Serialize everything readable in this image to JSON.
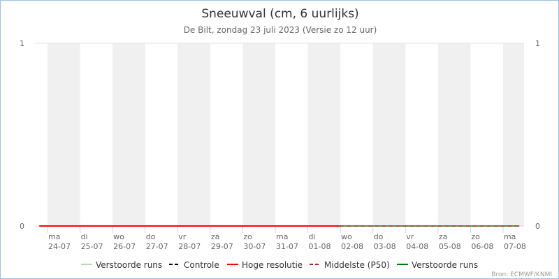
{
  "chart_data": {
    "type": "line",
    "title": "Sneeuwval (cm, 6 uurlijks)",
    "subtitle": "De Bilt, zondag 23 juli 2023 (Versie zo 12 uur)",
    "credits": "Bron: ECMWF/KNMI",
    "ylim": [
      0,
      1
    ],
    "yticks": [
      "0",
      "1"
    ],
    "grid": "horizontal",
    "legend_position": "bottom",
    "xticks": [
      {
        "day": "ma",
        "date": "24-07"
      },
      {
        "day": "di",
        "date": "25-07"
      },
      {
        "day": "wo",
        "date": "26-07"
      },
      {
        "day": "do",
        "date": "27-07"
      },
      {
        "day": "vr",
        "date": "28-07"
      },
      {
        "day": "za",
        "date": "29-07"
      },
      {
        "day": "zo",
        "date": "30-07"
      },
      {
        "day": "ma",
        "date": "31-07"
      },
      {
        "day": "di",
        "date": "01-08"
      },
      {
        "day": "wo",
        "date": "02-08"
      },
      {
        "day": "do",
        "date": "03-08"
      },
      {
        "day": "vr",
        "date": "04-08"
      },
      {
        "day": "za",
        "date": "05-08"
      },
      {
        "day": "zo",
        "date": "06-08"
      },
      {
        "day": "ma",
        "date": "07-08"
      }
    ],
    "series": [
      {
        "name": "Verstoorde runs",
        "color": "#b5dbb5",
        "dash": false,
        "x": [],
        "values": []
      },
      {
        "name": "Controle",
        "color": "#000000",
        "dash": true,
        "x": [],
        "values": []
      },
      {
        "name": "Hoge resolutie",
        "color": "#ff0000",
        "dash": false,
        "x": [
          "23-07 18:00",
          "02-08 00:00"
        ],
        "values": [
          0,
          0
        ]
      },
      {
        "name": "Middelste (P50)",
        "color": "#b22222",
        "dash": true,
        "x": [
          "23-07 18:00",
          "07-08 12:00"
        ],
        "values": [
          0,
          0
        ]
      },
      {
        "name": "Verstoorde runs",
        "color": "#008000",
        "dash": false,
        "x": [
          "23-07 18:00",
          "07-08 12:00"
        ],
        "values": [
          0,
          0
        ]
      }
    ]
  }
}
